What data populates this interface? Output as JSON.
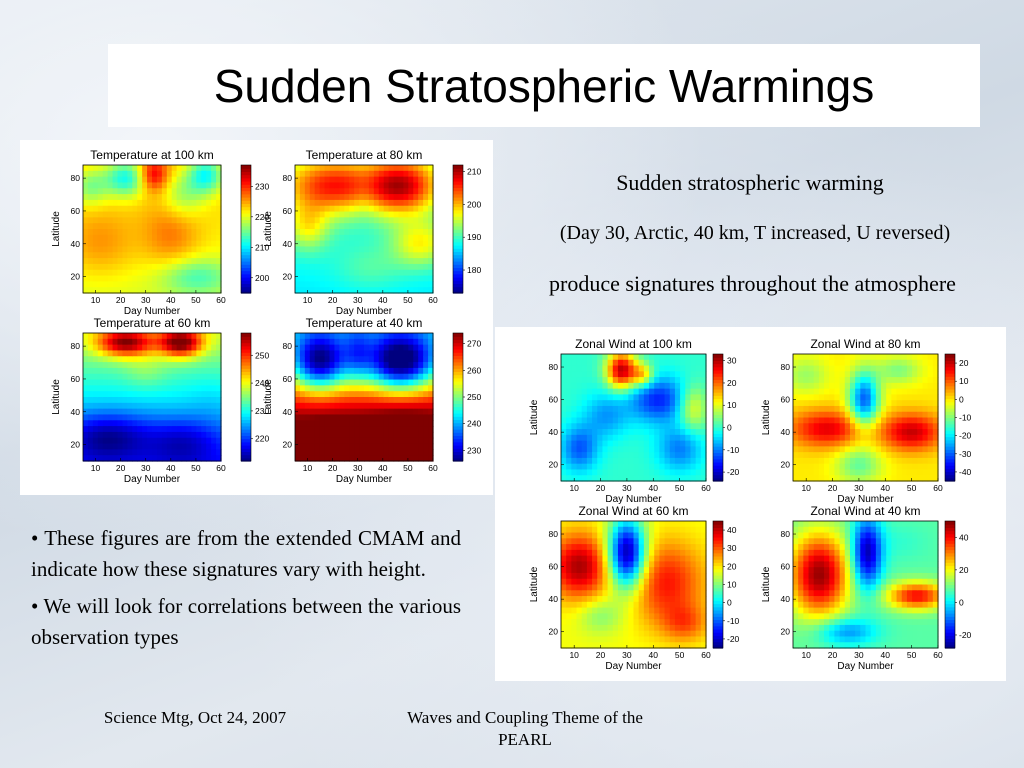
{
  "slide": {
    "title": "Sudden Stratospheric Warmings",
    "right_text": {
      "line1": "Sudden stratospheric warming",
      "line2": "(Day 30, Arctic, 40 km, T increased, U reversed)",
      "line3": "produce signatures throughout the atmosphere"
    },
    "bullets": [
      "These figures are from the extended CMAM and indicate how these signatures vary with height.",
      "We will look for correlations between the various observation types"
    ],
    "bullet_symbol": "•",
    "footer": {
      "left": "Science Mtg, Oct 24, 2007",
      "center": "Waves and Coupling Theme of the PEARL"
    },
    "colormap": [
      "#00007f",
      "#0000ff",
      "#007fff",
      "#00ffff",
      "#7fff7f",
      "#ffff00",
      "#ff7f00",
      "#ff0000",
      "#7f0000"
    ]
  },
  "chart_data": [
    {
      "type": "heatmap",
      "group": "temperature",
      "title": "Temperature at 100 km",
      "xlabel": "Day Number",
      "ylabel": "Latitude",
      "xticks": [
        "10",
        "20",
        "30",
        "40",
        "50",
        "60"
      ],
      "yticks": [
        "20",
        "40",
        "60",
        "80"
      ],
      "xlim": [
        5,
        60
      ],
      "ylim": [
        10,
        88
      ],
      "colorbar_ticks": [
        "200",
        "210",
        "220",
        "230"
      ],
      "colorbar_range": [
        195,
        237
      ],
      "field": {
        "base": 222,
        "lat_gradient": 0.05,
        "blobs": [
          [
            22,
            80,
            6,
            8,
            210
          ],
          [
            33,
            82,
            4,
            7,
            232
          ],
          [
            54,
            82,
            5,
            8,
            210
          ],
          [
            12,
            40,
            10,
            14,
            226
          ],
          [
            40,
            45,
            8,
            15,
            227
          ],
          [
            50,
            20,
            10,
            8,
            215
          ],
          [
            8,
            75,
            5,
            8,
            215
          ],
          [
            45,
            70,
            6,
            10,
            216
          ]
        ]
      }
    },
    {
      "type": "heatmap",
      "group": "temperature",
      "title": "Temperature at 80 km",
      "xlabel": "Day Number",
      "ylabel": "Latitude",
      "xticks": [
        "10",
        "20",
        "30",
        "40",
        "50",
        "60"
      ],
      "yticks": [
        "20",
        "40",
        "60",
        "80"
      ],
      "xlim": [
        5,
        60
      ],
      "ylim": [
        10,
        88
      ],
      "colorbar_ticks": [
        "180",
        "190",
        "200",
        "210"
      ],
      "colorbar_range": [
        173,
        212
      ],
      "field": {
        "base": 189,
        "lat_gradient": 0.05,
        "blobs": [
          [
            20,
            75,
            14,
            12,
            205
          ],
          [
            48,
            75,
            10,
            12,
            207
          ],
          [
            33,
            70,
            4,
            12,
            187
          ],
          [
            35,
            25,
            10,
            10,
            192
          ],
          [
            10,
            50,
            6,
            10,
            197
          ],
          [
            55,
            40,
            8,
            10,
            198
          ]
        ]
      }
    },
    {
      "type": "heatmap",
      "group": "temperature",
      "title": "Temperature at 60 km",
      "xlabel": "Day Number",
      "ylabel": "Latitude",
      "xticks": [
        "10",
        "20",
        "30",
        "40",
        "50",
        "60"
      ],
      "yticks": [
        "20",
        "40",
        "60",
        "80"
      ],
      "xlim": [
        5,
        60
      ],
      "ylim": [
        10,
        88
      ],
      "colorbar_ticks": [
        "220",
        "230",
        "240",
        "250"
      ],
      "colorbar_range": [
        212,
        258
      ],
      "field": {
        "base": 229,
        "lat_gradient": 0.25,
        "blobs": [
          [
            22,
            82,
            8,
            6,
            250
          ],
          [
            44,
            82,
            6,
            6,
            252
          ],
          [
            30,
            65,
            6,
            8,
            232
          ],
          [
            15,
            25,
            12,
            10,
            219
          ],
          [
            45,
            22,
            10,
            10,
            222
          ],
          [
            55,
            50,
            6,
            12,
            228
          ]
        ]
      }
    },
    {
      "type": "heatmap",
      "group": "temperature",
      "title": "Temperature at 40 km",
      "xlabel": "Day Number",
      "ylabel": "Latitude",
      "xticks": [
        "10",
        "20",
        "30",
        "40",
        "50",
        "60"
      ],
      "yticks": [
        "20",
        "40",
        "60",
        "80"
      ],
      "xlim": [
        5,
        60
      ],
      "ylim": [
        10,
        88
      ],
      "colorbar_ticks": [
        "230",
        "240",
        "250",
        "260",
        "270"
      ],
      "colorbar_range": [
        226,
        274
      ],
      "field": {
        "base": 266,
        "lat_gradient": -0.55,
        "blobs": [
          [
            15,
            70,
            8,
            12,
            238
          ],
          [
            47,
            70,
            10,
            12,
            234
          ],
          [
            30,
            75,
            4,
            12,
            258
          ],
          [
            48,
            35,
            10,
            8,
            270
          ],
          [
            20,
            30,
            8,
            8,
            268
          ]
        ]
      }
    },
    {
      "type": "heatmap",
      "group": "wind",
      "title": "Zonal Wind at 100 km",
      "xlabel": "Day Number",
      "ylabel": "Latitude",
      "xticks": [
        "10",
        "20",
        "30",
        "40",
        "50",
        "60"
      ],
      "yticks": [
        "20",
        "40",
        "60",
        "80"
      ],
      "xlim": [
        5,
        60
      ],
      "ylim": [
        10,
        88
      ],
      "colorbar_ticks": [
        "-20",
        "-10",
        "0",
        "10",
        "20",
        "30"
      ],
      "colorbar_range": [
        -24,
        33
      ],
      "field": {
        "base": 0,
        "lat_gradient": 0,
        "blobs": [
          [
            28,
            78,
            4,
            8,
            30
          ],
          [
            36,
            75,
            3,
            5,
            15
          ],
          [
            12,
            30,
            5,
            10,
            -12
          ],
          [
            42,
            60,
            8,
            10,
            -15
          ],
          [
            50,
            30,
            6,
            10,
            -10
          ],
          [
            22,
            50,
            6,
            10,
            -8
          ],
          [
            55,
            55,
            4,
            10,
            12
          ]
        ]
      }
    },
    {
      "type": "heatmap",
      "group": "wind",
      "title": "Zonal Wind at 80 km",
      "xlabel": "Day Number",
      "ylabel": "Latitude",
      "xticks": [
        "10",
        "20",
        "30",
        "40",
        "50",
        "60"
      ],
      "yticks": [
        "20",
        "40",
        "60",
        "80"
      ],
      "xlim": [
        5,
        60
      ],
      "ylim": [
        10,
        88
      ],
      "colorbar_ticks": [
        "-40",
        "-30",
        "-20",
        "-10",
        "0",
        "10",
        "20"
      ],
      "colorbar_range": [
        -45,
        25
      ],
      "field": {
        "base": 0,
        "lat_gradient": 0,
        "blobs": [
          [
            18,
            42,
            10,
            8,
            18
          ],
          [
            50,
            40,
            8,
            8,
            20
          ],
          [
            32,
            60,
            4,
            12,
            -30
          ],
          [
            30,
            20,
            6,
            8,
            -12
          ],
          [
            10,
            75,
            6,
            8,
            -8
          ],
          [
            45,
            78,
            6,
            6,
            -10
          ]
        ]
      }
    },
    {
      "type": "heatmap",
      "group": "wind",
      "title": "Zonal Wind at 60 km",
      "xlabel": "Day Number",
      "ylabel": "Latitude",
      "xticks": [
        "10",
        "20",
        "30",
        "40",
        "50",
        "60"
      ],
      "yticks": [
        "20",
        "40",
        "60",
        "80"
      ],
      "xlim": [
        5,
        60
      ],
      "ylim": [
        10,
        88
      ],
      "colorbar_ticks": [
        "-20",
        "-10",
        "0",
        "10",
        "20",
        "30",
        "40"
      ],
      "colorbar_range": [
        -25,
        45
      ],
      "field": {
        "base": 18,
        "lat_gradient": 0,
        "blobs": [
          [
            30,
            68,
            5,
            15,
            -25
          ],
          [
            12,
            60,
            8,
            14,
            42
          ],
          [
            45,
            50,
            10,
            18,
            35
          ],
          [
            20,
            30,
            6,
            8,
            10
          ],
          [
            52,
            25,
            6,
            8,
            28
          ]
        ]
      }
    },
    {
      "type": "heatmap",
      "group": "wind",
      "title": "Zonal Wind at 40 km",
      "xlabel": "Day Number",
      "ylabel": "Latitude",
      "xticks": [
        "10",
        "20",
        "30",
        "40",
        "50",
        "60"
      ],
      "yticks": [
        "20",
        "40",
        "60",
        "80"
      ],
      "xlim": [
        5,
        60
      ],
      "ylim": [
        10,
        88
      ],
      "colorbar_ticks": [
        "-20",
        "0",
        "20",
        "40"
      ],
      "colorbar_range": [
        -28,
        50
      ],
      "field": {
        "base": 8,
        "lat_gradient": 0,
        "blobs": [
          [
            15,
            55,
            8,
            18,
            48
          ],
          [
            33,
            68,
            4,
            15,
            -25
          ],
          [
            52,
            42,
            8,
            6,
            40
          ],
          [
            25,
            20,
            8,
            6,
            -8
          ],
          [
            45,
            75,
            8,
            8,
            5
          ]
        ]
      }
    }
  ]
}
